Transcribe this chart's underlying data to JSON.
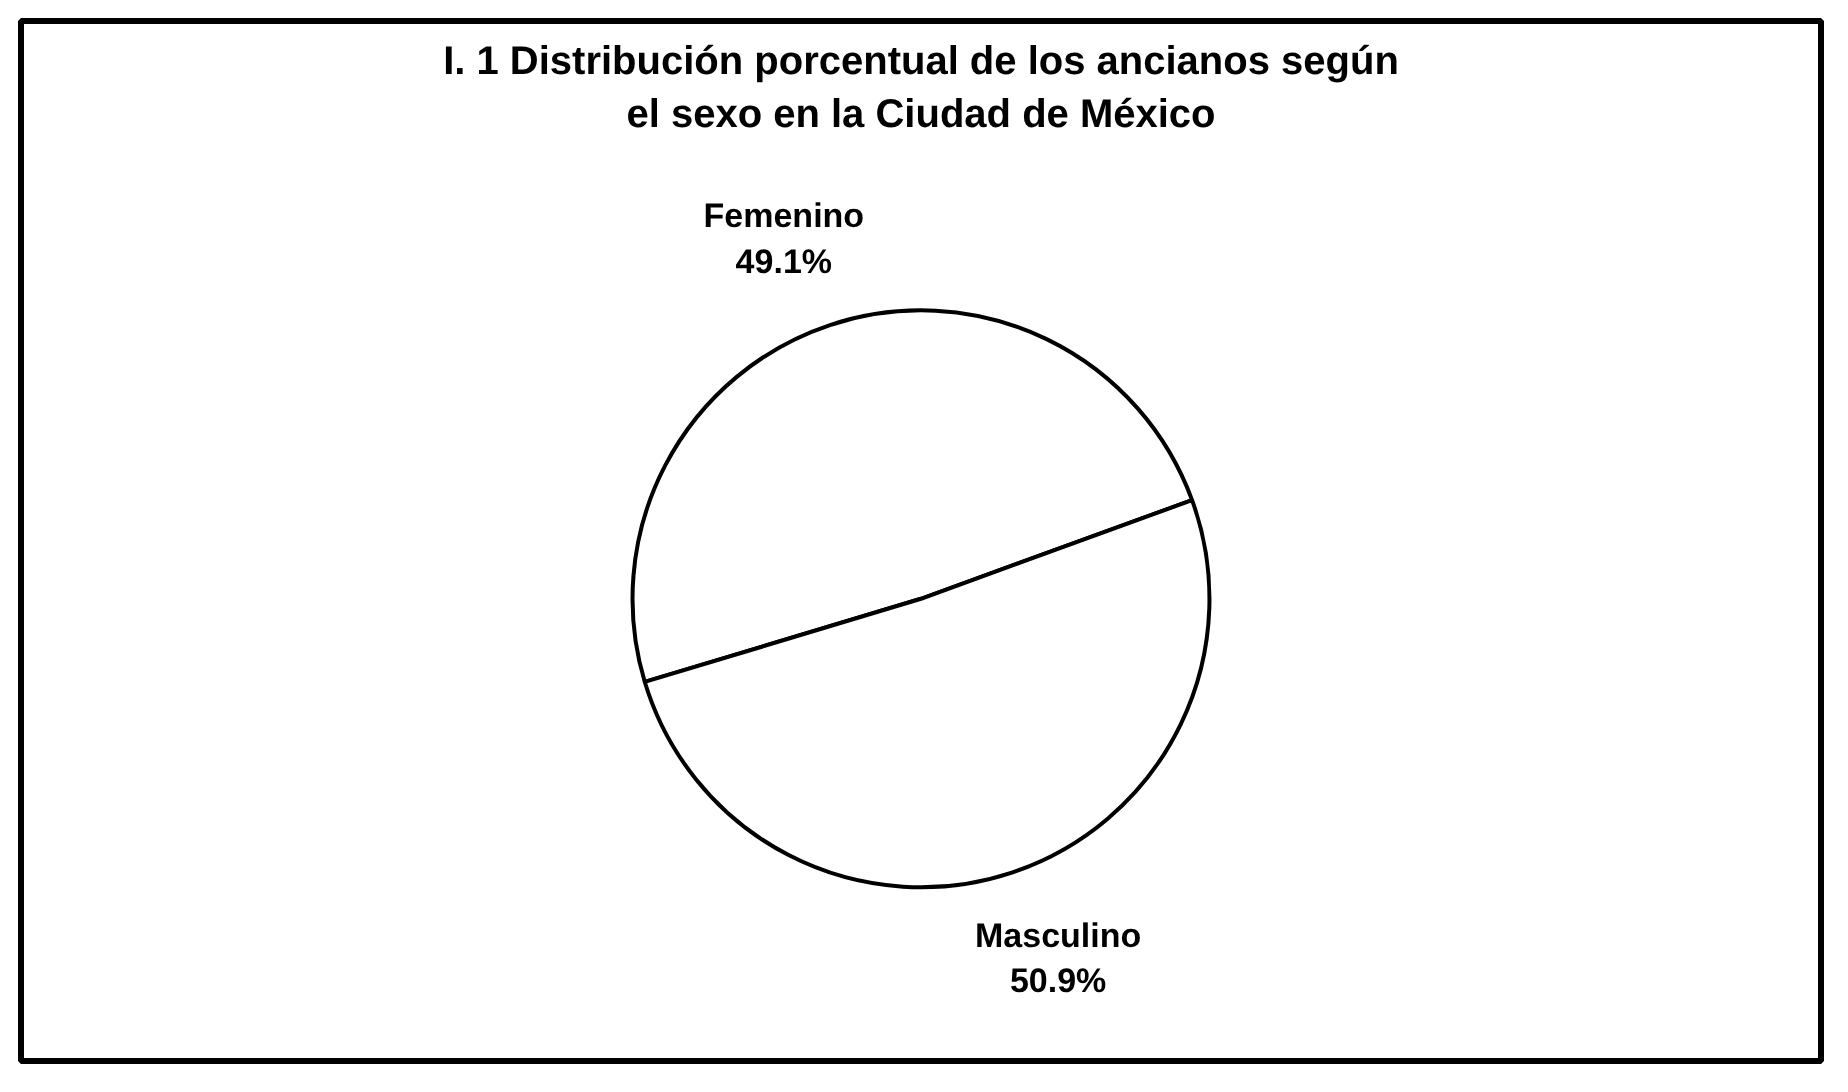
{
  "chart_data": {
    "type": "pie",
    "title": "I. 1 Distribución porcentual de los ancianos según el sexo en la Ciudad de México",
    "categories": [
      "Femenino",
      "Masculino"
    ],
    "values": [
      49.1,
      50.9
    ],
    "value_labels": [
      "49.1%",
      "50.9%"
    ],
    "colors": [
      "#ffffff",
      "#ffffff"
    ]
  }
}
